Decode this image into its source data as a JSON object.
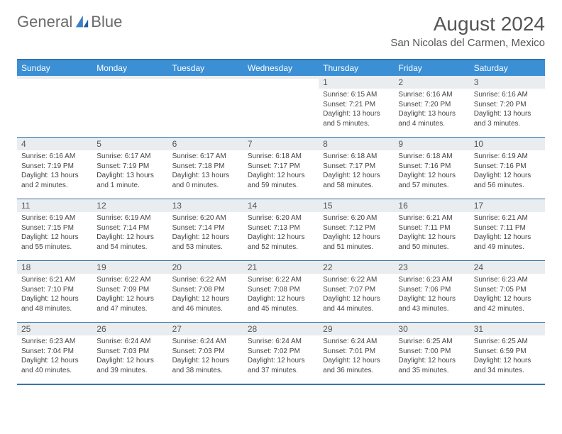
{
  "brand": {
    "word1": "General",
    "word2": "Blue"
  },
  "title": "August 2024",
  "location": "San Nicolas del Carmen, Mexico",
  "colors": {
    "header_bg": "#3b8fd4",
    "border": "#3776a8",
    "daynum_bg": "#e9edf0",
    "text": "#444444",
    "title_text": "#555555"
  },
  "day_names": [
    "Sunday",
    "Monday",
    "Tuesday",
    "Wednesday",
    "Thursday",
    "Friday",
    "Saturday"
  ],
  "weeks": [
    [
      {
        "n": "",
        "sr": "",
        "ss": "",
        "dl": ""
      },
      {
        "n": "",
        "sr": "",
        "ss": "",
        "dl": ""
      },
      {
        "n": "",
        "sr": "",
        "ss": "",
        "dl": ""
      },
      {
        "n": "",
        "sr": "",
        "ss": "",
        "dl": ""
      },
      {
        "n": "1",
        "sr": "Sunrise: 6:15 AM",
        "ss": "Sunset: 7:21 PM",
        "dl": "Daylight: 13 hours and 5 minutes."
      },
      {
        "n": "2",
        "sr": "Sunrise: 6:16 AM",
        "ss": "Sunset: 7:20 PM",
        "dl": "Daylight: 13 hours and 4 minutes."
      },
      {
        "n": "3",
        "sr": "Sunrise: 6:16 AM",
        "ss": "Sunset: 7:20 PM",
        "dl": "Daylight: 13 hours and 3 minutes."
      }
    ],
    [
      {
        "n": "4",
        "sr": "Sunrise: 6:16 AM",
        "ss": "Sunset: 7:19 PM",
        "dl": "Daylight: 13 hours and 2 minutes."
      },
      {
        "n": "5",
        "sr": "Sunrise: 6:17 AM",
        "ss": "Sunset: 7:19 PM",
        "dl": "Daylight: 13 hours and 1 minute."
      },
      {
        "n": "6",
        "sr": "Sunrise: 6:17 AM",
        "ss": "Sunset: 7:18 PM",
        "dl": "Daylight: 13 hours and 0 minutes."
      },
      {
        "n": "7",
        "sr": "Sunrise: 6:18 AM",
        "ss": "Sunset: 7:17 PM",
        "dl": "Daylight: 12 hours and 59 minutes."
      },
      {
        "n": "8",
        "sr": "Sunrise: 6:18 AM",
        "ss": "Sunset: 7:17 PM",
        "dl": "Daylight: 12 hours and 58 minutes."
      },
      {
        "n": "9",
        "sr": "Sunrise: 6:18 AM",
        "ss": "Sunset: 7:16 PM",
        "dl": "Daylight: 12 hours and 57 minutes."
      },
      {
        "n": "10",
        "sr": "Sunrise: 6:19 AM",
        "ss": "Sunset: 7:16 PM",
        "dl": "Daylight: 12 hours and 56 minutes."
      }
    ],
    [
      {
        "n": "11",
        "sr": "Sunrise: 6:19 AM",
        "ss": "Sunset: 7:15 PM",
        "dl": "Daylight: 12 hours and 55 minutes."
      },
      {
        "n": "12",
        "sr": "Sunrise: 6:19 AM",
        "ss": "Sunset: 7:14 PM",
        "dl": "Daylight: 12 hours and 54 minutes."
      },
      {
        "n": "13",
        "sr": "Sunrise: 6:20 AM",
        "ss": "Sunset: 7:14 PM",
        "dl": "Daylight: 12 hours and 53 minutes."
      },
      {
        "n": "14",
        "sr": "Sunrise: 6:20 AM",
        "ss": "Sunset: 7:13 PM",
        "dl": "Daylight: 12 hours and 52 minutes."
      },
      {
        "n": "15",
        "sr": "Sunrise: 6:20 AM",
        "ss": "Sunset: 7:12 PM",
        "dl": "Daylight: 12 hours and 51 minutes."
      },
      {
        "n": "16",
        "sr": "Sunrise: 6:21 AM",
        "ss": "Sunset: 7:11 PM",
        "dl": "Daylight: 12 hours and 50 minutes."
      },
      {
        "n": "17",
        "sr": "Sunrise: 6:21 AM",
        "ss": "Sunset: 7:11 PM",
        "dl": "Daylight: 12 hours and 49 minutes."
      }
    ],
    [
      {
        "n": "18",
        "sr": "Sunrise: 6:21 AM",
        "ss": "Sunset: 7:10 PM",
        "dl": "Daylight: 12 hours and 48 minutes."
      },
      {
        "n": "19",
        "sr": "Sunrise: 6:22 AM",
        "ss": "Sunset: 7:09 PM",
        "dl": "Daylight: 12 hours and 47 minutes."
      },
      {
        "n": "20",
        "sr": "Sunrise: 6:22 AM",
        "ss": "Sunset: 7:08 PM",
        "dl": "Daylight: 12 hours and 46 minutes."
      },
      {
        "n": "21",
        "sr": "Sunrise: 6:22 AM",
        "ss": "Sunset: 7:08 PM",
        "dl": "Daylight: 12 hours and 45 minutes."
      },
      {
        "n": "22",
        "sr": "Sunrise: 6:22 AM",
        "ss": "Sunset: 7:07 PM",
        "dl": "Daylight: 12 hours and 44 minutes."
      },
      {
        "n": "23",
        "sr": "Sunrise: 6:23 AM",
        "ss": "Sunset: 7:06 PM",
        "dl": "Daylight: 12 hours and 43 minutes."
      },
      {
        "n": "24",
        "sr": "Sunrise: 6:23 AM",
        "ss": "Sunset: 7:05 PM",
        "dl": "Daylight: 12 hours and 42 minutes."
      }
    ],
    [
      {
        "n": "25",
        "sr": "Sunrise: 6:23 AM",
        "ss": "Sunset: 7:04 PM",
        "dl": "Daylight: 12 hours and 40 minutes."
      },
      {
        "n": "26",
        "sr": "Sunrise: 6:24 AM",
        "ss": "Sunset: 7:03 PM",
        "dl": "Daylight: 12 hours and 39 minutes."
      },
      {
        "n": "27",
        "sr": "Sunrise: 6:24 AM",
        "ss": "Sunset: 7:03 PM",
        "dl": "Daylight: 12 hours and 38 minutes."
      },
      {
        "n": "28",
        "sr": "Sunrise: 6:24 AM",
        "ss": "Sunset: 7:02 PM",
        "dl": "Daylight: 12 hours and 37 minutes."
      },
      {
        "n": "29",
        "sr": "Sunrise: 6:24 AM",
        "ss": "Sunset: 7:01 PM",
        "dl": "Daylight: 12 hours and 36 minutes."
      },
      {
        "n": "30",
        "sr": "Sunrise: 6:25 AM",
        "ss": "Sunset: 7:00 PM",
        "dl": "Daylight: 12 hours and 35 minutes."
      },
      {
        "n": "31",
        "sr": "Sunrise: 6:25 AM",
        "ss": "Sunset: 6:59 PM",
        "dl": "Daylight: 12 hours and 34 minutes."
      }
    ]
  ]
}
